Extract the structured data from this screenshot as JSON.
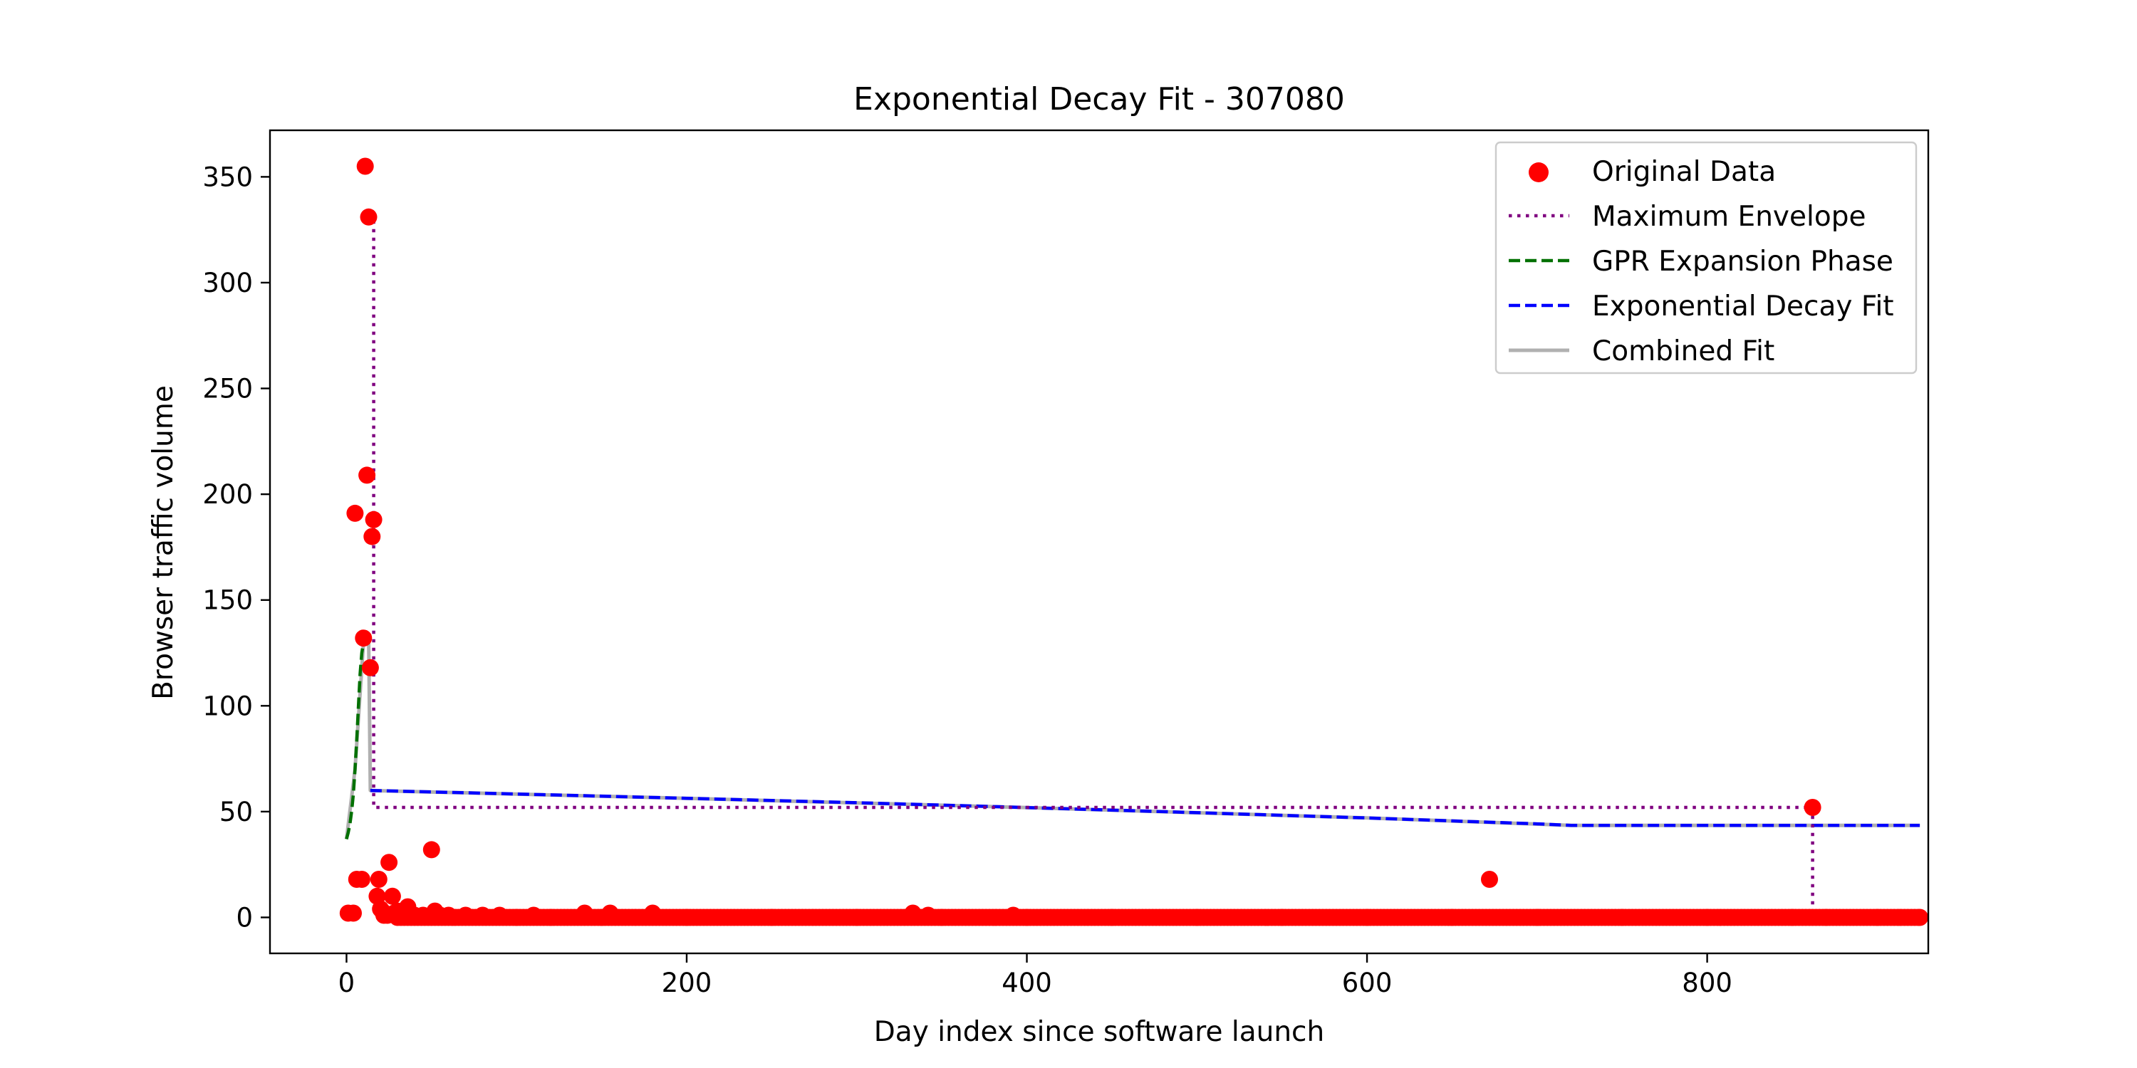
{
  "chart_data": {
    "type": "scatter",
    "title": "Exponential Decay Fit - 307080",
    "xlabel": "Day index since software launch",
    "ylabel": "Browser traffic volume",
    "xlim": [
      -45,
      930
    ],
    "ylim": [
      -17,
      372
    ],
    "xticks": [
      0,
      200,
      400,
      600,
      800
    ],
    "yticks": [
      0,
      50,
      100,
      150,
      200,
      250,
      300,
      350
    ],
    "grid": false,
    "legend_position": "upper right",
    "series": [
      {
        "name": "Original Data",
        "kind": "scatter",
        "color": "#ff0000",
        "points": [
          [
            1,
            2
          ],
          [
            4,
            2
          ],
          [
            5,
            191
          ],
          [
            6,
            18
          ],
          [
            9,
            18
          ],
          [
            10,
            132
          ],
          [
            11,
            355
          ],
          [
            12,
            209
          ],
          [
            13,
            331
          ],
          [
            14,
            118
          ],
          [
            15,
            180
          ],
          [
            16,
            188
          ],
          [
            18,
            10
          ],
          [
            19,
            18
          ],
          [
            20,
            4
          ],
          [
            21,
            3
          ],
          [
            22,
            1
          ],
          [
            24,
            1
          ],
          [
            25,
            26
          ],
          [
            27,
            10
          ],
          [
            28,
            2
          ],
          [
            30,
            3
          ],
          [
            33,
            1
          ],
          [
            36,
            5
          ],
          [
            40,
            1
          ],
          [
            45,
            1
          ],
          [
            50,
            32
          ],
          [
            52,
            3
          ],
          [
            55,
            1
          ],
          [
            60,
            1
          ],
          [
            70,
            1
          ],
          [
            80,
            1
          ],
          [
            90,
            1
          ],
          [
            100,
            0
          ],
          [
            110,
            1
          ],
          [
            120,
            0
          ],
          [
            140,
            2
          ],
          [
            150,
            0
          ],
          [
            155,
            2
          ],
          [
            180,
            2
          ],
          [
            200,
            0
          ],
          [
            250,
            0
          ],
          [
            300,
            0
          ],
          [
            333,
            2
          ],
          [
            342,
            1
          ],
          [
            350,
            0
          ],
          [
            392,
            1
          ],
          [
            400,
            0
          ],
          [
            450,
            0
          ],
          [
            500,
            0
          ],
          [
            550,
            0
          ],
          [
            600,
            0
          ],
          [
            650,
            0
          ],
          [
            672,
            18
          ],
          [
            700,
            0
          ],
          [
            750,
            0
          ],
          [
            800,
            0
          ],
          [
            850,
            0
          ],
          [
            862,
            52
          ],
          [
            870,
            0
          ],
          [
            900,
            0
          ],
          [
            925,
            0
          ]
        ],
        "dense_runs": [
          {
            "from": 30,
            "to": 925,
            "y": 0
          }
        ]
      },
      {
        "name": "Maximum Envelope",
        "kind": "step",
        "color": "#800080",
        "points": [
          [
            13,
            331
          ],
          [
            13,
            331
          ],
          [
            16,
            331
          ],
          [
            16,
            52
          ],
          [
            862,
            52
          ],
          [
            862,
            0
          ],
          [
            925,
            0
          ]
        ]
      },
      {
        "name": "GPR Expansion Phase",
        "kind": "line",
        "color": "#007000",
        "points": [
          [
            0,
            37
          ],
          [
            1,
            40
          ],
          [
            2,
            44
          ],
          [
            3,
            50
          ],
          [
            4,
            58
          ],
          [
            5,
            70
          ],
          [
            6,
            84
          ],
          [
            7,
            100
          ],
          [
            8,
            115
          ],
          [
            9,
            125
          ],
          [
            10,
            130
          ],
          [
            11,
            133
          ],
          [
            12,
            134
          ],
          [
            13,
            133
          ]
        ]
      },
      {
        "name": "Exponential Decay Fit",
        "kind": "line",
        "color": "#0000ff",
        "points": [
          [
            14,
            60
          ],
          [
            100,
            58.3
          ],
          [
            200,
            56.3
          ],
          [
            300,
            54.2
          ],
          [
            400,
            51.9
          ],
          [
            500,
            49.5
          ],
          [
            600,
            47
          ],
          [
            700,
            44.2
          ],
          [
            720,
            43.5
          ],
          [
            800,
            43.5
          ],
          [
            925,
            43.5
          ]
        ]
      },
      {
        "name": "Combined Fit",
        "kind": "line",
        "color": "#b0b0b0",
        "points": [
          [
            0,
            37
          ],
          [
            5,
            70
          ],
          [
            10,
            130
          ],
          [
            13,
            133
          ],
          [
            14,
            60
          ],
          [
            200,
            56.3
          ],
          [
            400,
            51.9
          ],
          [
            600,
            47
          ],
          [
            720,
            43.5
          ],
          [
            925,
            43.5
          ]
        ]
      }
    ]
  }
}
